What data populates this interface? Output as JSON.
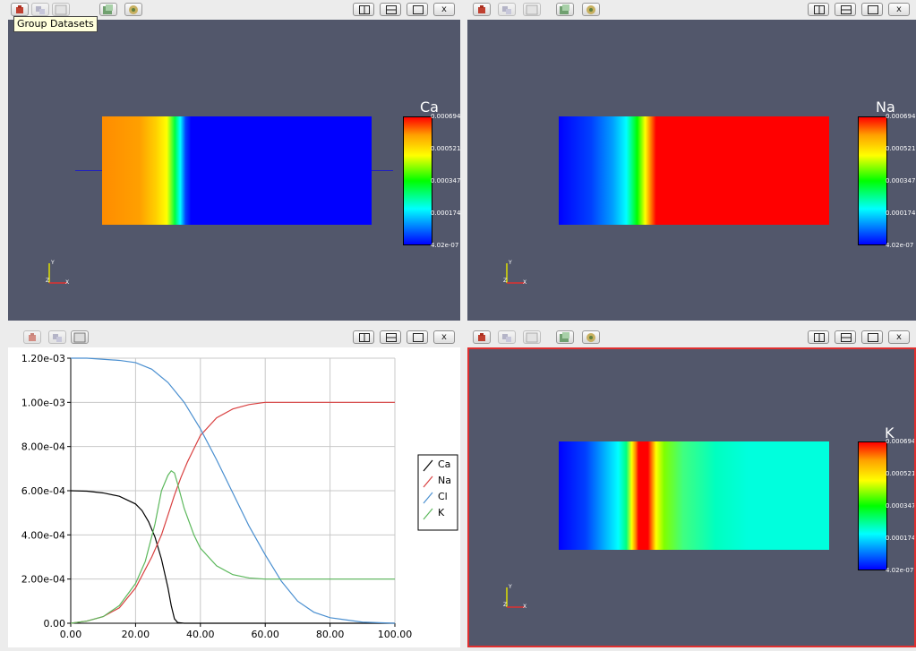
{
  "tooltip": "Group Datasets",
  "window_buttons": {
    "close_label": "x"
  },
  "panes": {
    "top_left": {
      "variable": "Ca",
      "legend_labels": [
        "0.000694",
        "0.000521",
        "0.000347",
        "0.000174",
        "4.02e-07"
      ]
    },
    "top_right": {
      "variable": "Na",
      "legend_labels": [
        "0.000694",
        "0.000521",
        "0.000347",
        "0.000174",
        "4.02e-07"
      ]
    },
    "bottom_right": {
      "variable": "K",
      "legend_labels": [
        "0.000694",
        "0.000521",
        "0.000347",
        "0.000174",
        "4.02e-07"
      ]
    }
  },
  "axes_glyph": {
    "y": "Y",
    "z": "Z",
    "x": "X"
  },
  "colors": {
    "view_bg": "#52576b",
    "active_border": "#e03030"
  },
  "chart_data": {
    "type": "line",
    "title": "",
    "xlabel": "",
    "ylabel": "",
    "xlim": [
      0,
      100
    ],
    "ylim": [
      0,
      0.0012
    ],
    "x_ticks": [
      "0.00",
      "20.00",
      "40.00",
      "60.00",
      "80.00",
      "100.00"
    ],
    "y_ticks": [
      "0.00",
      "2.00e-04",
      "4.00e-04",
      "6.00e-04",
      "8.00e-04",
      "1.00e-03",
      "1.20e-03"
    ],
    "grid": true,
    "legend_position": "right",
    "series": [
      {
        "name": "Ca",
        "color": "#000000",
        "x": [
          0,
          5,
          10,
          15,
          20,
          22,
          24,
          26,
          28,
          30,
          31,
          32,
          33,
          35,
          40,
          60,
          80,
          100
        ],
        "y": [
          0.0006,
          0.000598,
          0.00059,
          0.000575,
          0.00054,
          0.00051,
          0.00046,
          0.00039,
          0.00029,
          0.00016,
          8e-05,
          2e-05,
          3e-06,
          0,
          0,
          0,
          0,
          0
        ]
      },
      {
        "name": "Na",
        "color": "#d94040",
        "x": [
          0,
          5,
          10,
          15,
          20,
          25,
          28,
          30,
          32,
          34,
          36,
          38,
          40,
          45,
          50,
          55,
          60,
          70,
          80,
          100
        ],
        "y": [
          0,
          1e-05,
          3e-05,
          7e-05,
          0.00016,
          0.0003,
          0.0004,
          0.00049,
          0.00058,
          0.00066,
          0.00073,
          0.00079,
          0.00085,
          0.00093,
          0.00097,
          0.00099,
          0.001,
          0.001,
          0.001,
          0.001
        ]
      },
      {
        "name": "Cl",
        "color": "#4a8fd0",
        "x": [
          0,
          5,
          10,
          15,
          20,
          25,
          30,
          35,
          40,
          45,
          50,
          55,
          60,
          65,
          70,
          75,
          80,
          90,
          100
        ],
        "y": [
          0.0012,
          0.0012,
          0.001195,
          0.00119,
          0.00118,
          0.00115,
          0.00109,
          0.001,
          0.00088,
          0.00074,
          0.00059,
          0.00044,
          0.00031,
          0.00019,
          0.0001,
          5e-05,
          2.5e-05,
          5e-06,
          0
        ]
      },
      {
        "name": "K",
        "color": "#5cb85c",
        "x": [
          0,
          5,
          10,
          15,
          20,
          23,
          26,
          28,
          30,
          31,
          32,
          33,
          35,
          38,
          40,
          45,
          50,
          55,
          60,
          70,
          80,
          100
        ],
        "y": [
          0,
          1e-05,
          3e-05,
          8e-05,
          0.00018,
          0.00028,
          0.00045,
          0.0006,
          0.00067,
          0.00069,
          0.00068,
          0.00063,
          0.00052,
          0.0004,
          0.00034,
          0.00026,
          0.00022,
          0.000205,
          0.0002,
          0.0002,
          0.0002,
          0.0002
        ]
      }
    ]
  }
}
